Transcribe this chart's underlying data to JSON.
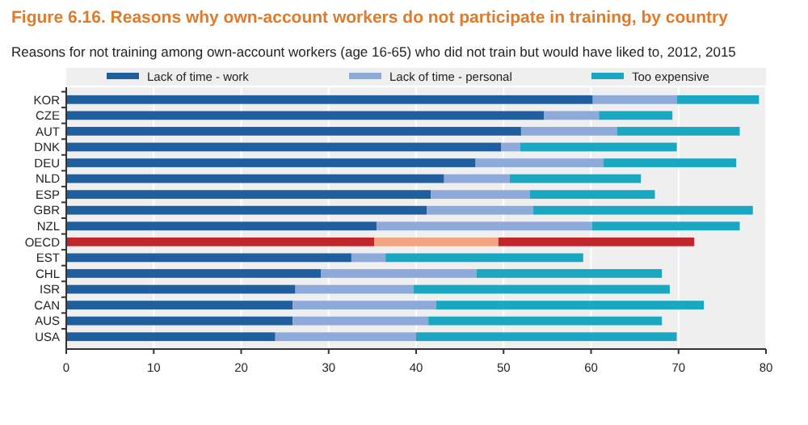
{
  "chart_data": {
    "type": "bar",
    "orientation": "horizontal",
    "stacked": true,
    "title": "Figure 6.16. Reasons why own-account workers do not participate in training, by country",
    "subtitle": "Reasons for not training among own-account workers (age 16-65) who did not train but would have liked to, 2012, 2015",
    "categories": [
      "KOR",
      "CZE",
      "AUT",
      "DNK",
      "DEU",
      "NLD",
      "ESP",
      "GBR",
      "NZL",
      "OECD",
      "EST",
      "CHL",
      "ISR",
      "CAN",
      "AUS",
      "USA"
    ],
    "series": [
      {
        "name": "Lack of time - work",
        "color": "#1f5fa0",
        "colors": [
          "#1f5fa0",
          "#1f5fa0",
          "#1f5fa0",
          "#1f5fa0",
          "#1f5fa0",
          "#1f5fa0",
          "#1f5fa0",
          "#1f5fa0",
          "#1f5fa0",
          "#c0272d",
          "#1f5fa0",
          "#1f5fa0",
          "#1f5fa0",
          "#1f5fa0",
          "#1f5fa0",
          "#1f5fa0"
        ],
        "values": [
          60.2,
          54.6,
          52.0,
          49.7,
          46.8,
          43.2,
          41.7,
          41.2,
          35.5,
          35.2,
          32.6,
          29.1,
          26.2,
          25.9,
          25.9,
          23.9
        ]
      },
      {
        "name": "Lack of time - personal",
        "color": "#8eaadb",
        "colors": [
          "#8eaadb",
          "#8eaadb",
          "#8eaadb",
          "#8eaadb",
          "#8eaadb",
          "#8eaadb",
          "#8eaadb",
          "#8eaadb",
          "#8eaadb",
          "#f4a582",
          "#8eaadb",
          "#8eaadb",
          "#8eaadb",
          "#8eaadb",
          "#8eaadb",
          "#8eaadb"
        ],
        "values": [
          9.6,
          6.3,
          11.0,
          2.2,
          14.6,
          7.5,
          11.3,
          12.2,
          24.6,
          14.2,
          3.9,
          17.8,
          13.5,
          16.4,
          15.5,
          16.1
        ]
      },
      {
        "name": "Too expensive",
        "color": "#19a7c2",
        "colors": [
          "#19a7c2",
          "#19a7c2",
          "#19a7c2",
          "#19a7c2",
          "#19a7c2",
          "#19a7c2",
          "#19a7c2",
          "#19a7c2",
          "#19a7c2",
          "#c0272d",
          "#19a7c2",
          "#19a7c2",
          "#19a7c2",
          "#19a7c2",
          "#19a7c2",
          "#19a7c2"
        ],
        "values": [
          9.4,
          8.4,
          14.0,
          17.9,
          15.2,
          15.0,
          14.3,
          25.1,
          16.9,
          22.4,
          22.6,
          21.2,
          29.3,
          30.6,
          26.7,
          29.8
        ]
      }
    ],
    "xlim": [
      0,
      80
    ],
    "xticks": [
      0,
      10,
      20,
      30,
      40,
      50,
      60,
      70,
      80
    ],
    "grid": "x",
    "legend": "top"
  }
}
